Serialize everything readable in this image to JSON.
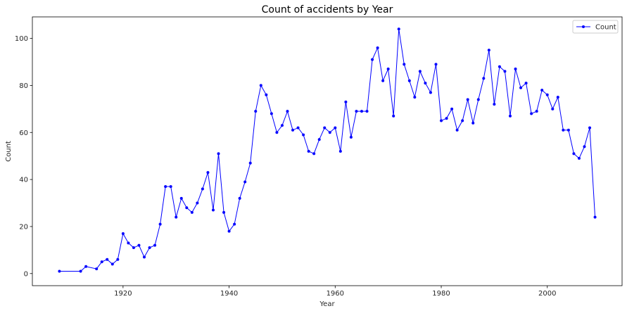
{
  "chart_data": {
    "type": "line",
    "title": "Count of accidents by Year",
    "xlabel": "Year",
    "ylabel": "Count",
    "xlim": [
      1902.9,
      2014.1
    ],
    "ylim": [
      -5.15,
      109.15
    ],
    "xticks": [
      1920,
      1940,
      1960,
      1980,
      2000
    ],
    "yticks": [
      0,
      20,
      40,
      60,
      80,
      100
    ],
    "grid": false,
    "legend_position": "top-right",
    "colors": {
      "line": "#0000ff",
      "axes": "#000000",
      "background": "#ffffff"
    },
    "series": [
      {
        "name": "Count",
        "marker": "dot",
        "x": [
          1908,
          1912,
          1913,
          1915,
          1916,
          1917,
          1918,
          1919,
          1920,
          1921,
          1922,
          1923,
          1924,
          1925,
          1926,
          1927,
          1928,
          1929,
          1930,
          1931,
          1932,
          1933,
          1934,
          1935,
          1936,
          1937,
          1938,
          1939,
          1940,
          1941,
          1942,
          1943,
          1944,
          1945,
          1946,
          1947,
          1948,
          1949,
          1950,
          1951,
          1952,
          1953,
          1954,
          1955,
          1956,
          1957,
          1958,
          1959,
          1960,
          1961,
          1962,
          1963,
          1964,
          1965,
          1966,
          1967,
          1968,
          1969,
          1970,
          1971,
          1972,
          1973,
          1974,
          1975,
          1976,
          1977,
          1978,
          1979,
          1980,
          1981,
          1982,
          1983,
          1984,
          1985,
          1986,
          1987,
          1988,
          1989,
          1990,
          1991,
          1992,
          1993,
          1994,
          1995,
          1996,
          1997,
          1998,
          1999,
          2000,
          2001,
          2002,
          2003,
          2004,
          2005,
          2006,
          2007,
          2008,
          2009
        ],
        "values": [
          1,
          1,
          3,
          2,
          5,
          6,
          4,
          6,
          17,
          13,
          11,
          12,
          7,
          11,
          12,
          21,
          37,
          37,
          24,
          32,
          28,
          26,
          30,
          36,
          43,
          27,
          51,
          26,
          18,
          21,
          32,
          39,
          47,
          69,
          80,
          76,
          68,
          60,
          63,
          69,
          61,
          62,
          59,
          52,
          51,
          57,
          62,
          60,
          62,
          52,
          73,
          58,
          69,
          69,
          69,
          91,
          96,
          82,
          87,
          67,
          104,
          89,
          82,
          75,
          86,
          81,
          77,
          89,
          65,
          66,
          70,
          61,
          65,
          74,
          64,
          74,
          83,
          95,
          72,
          88,
          86,
          67,
          87,
          79,
          81,
          68,
          69,
          78,
          76,
          70,
          75,
          61,
          61,
          51,
          49,
          54,
          62,
          24
        ]
      }
    ]
  }
}
